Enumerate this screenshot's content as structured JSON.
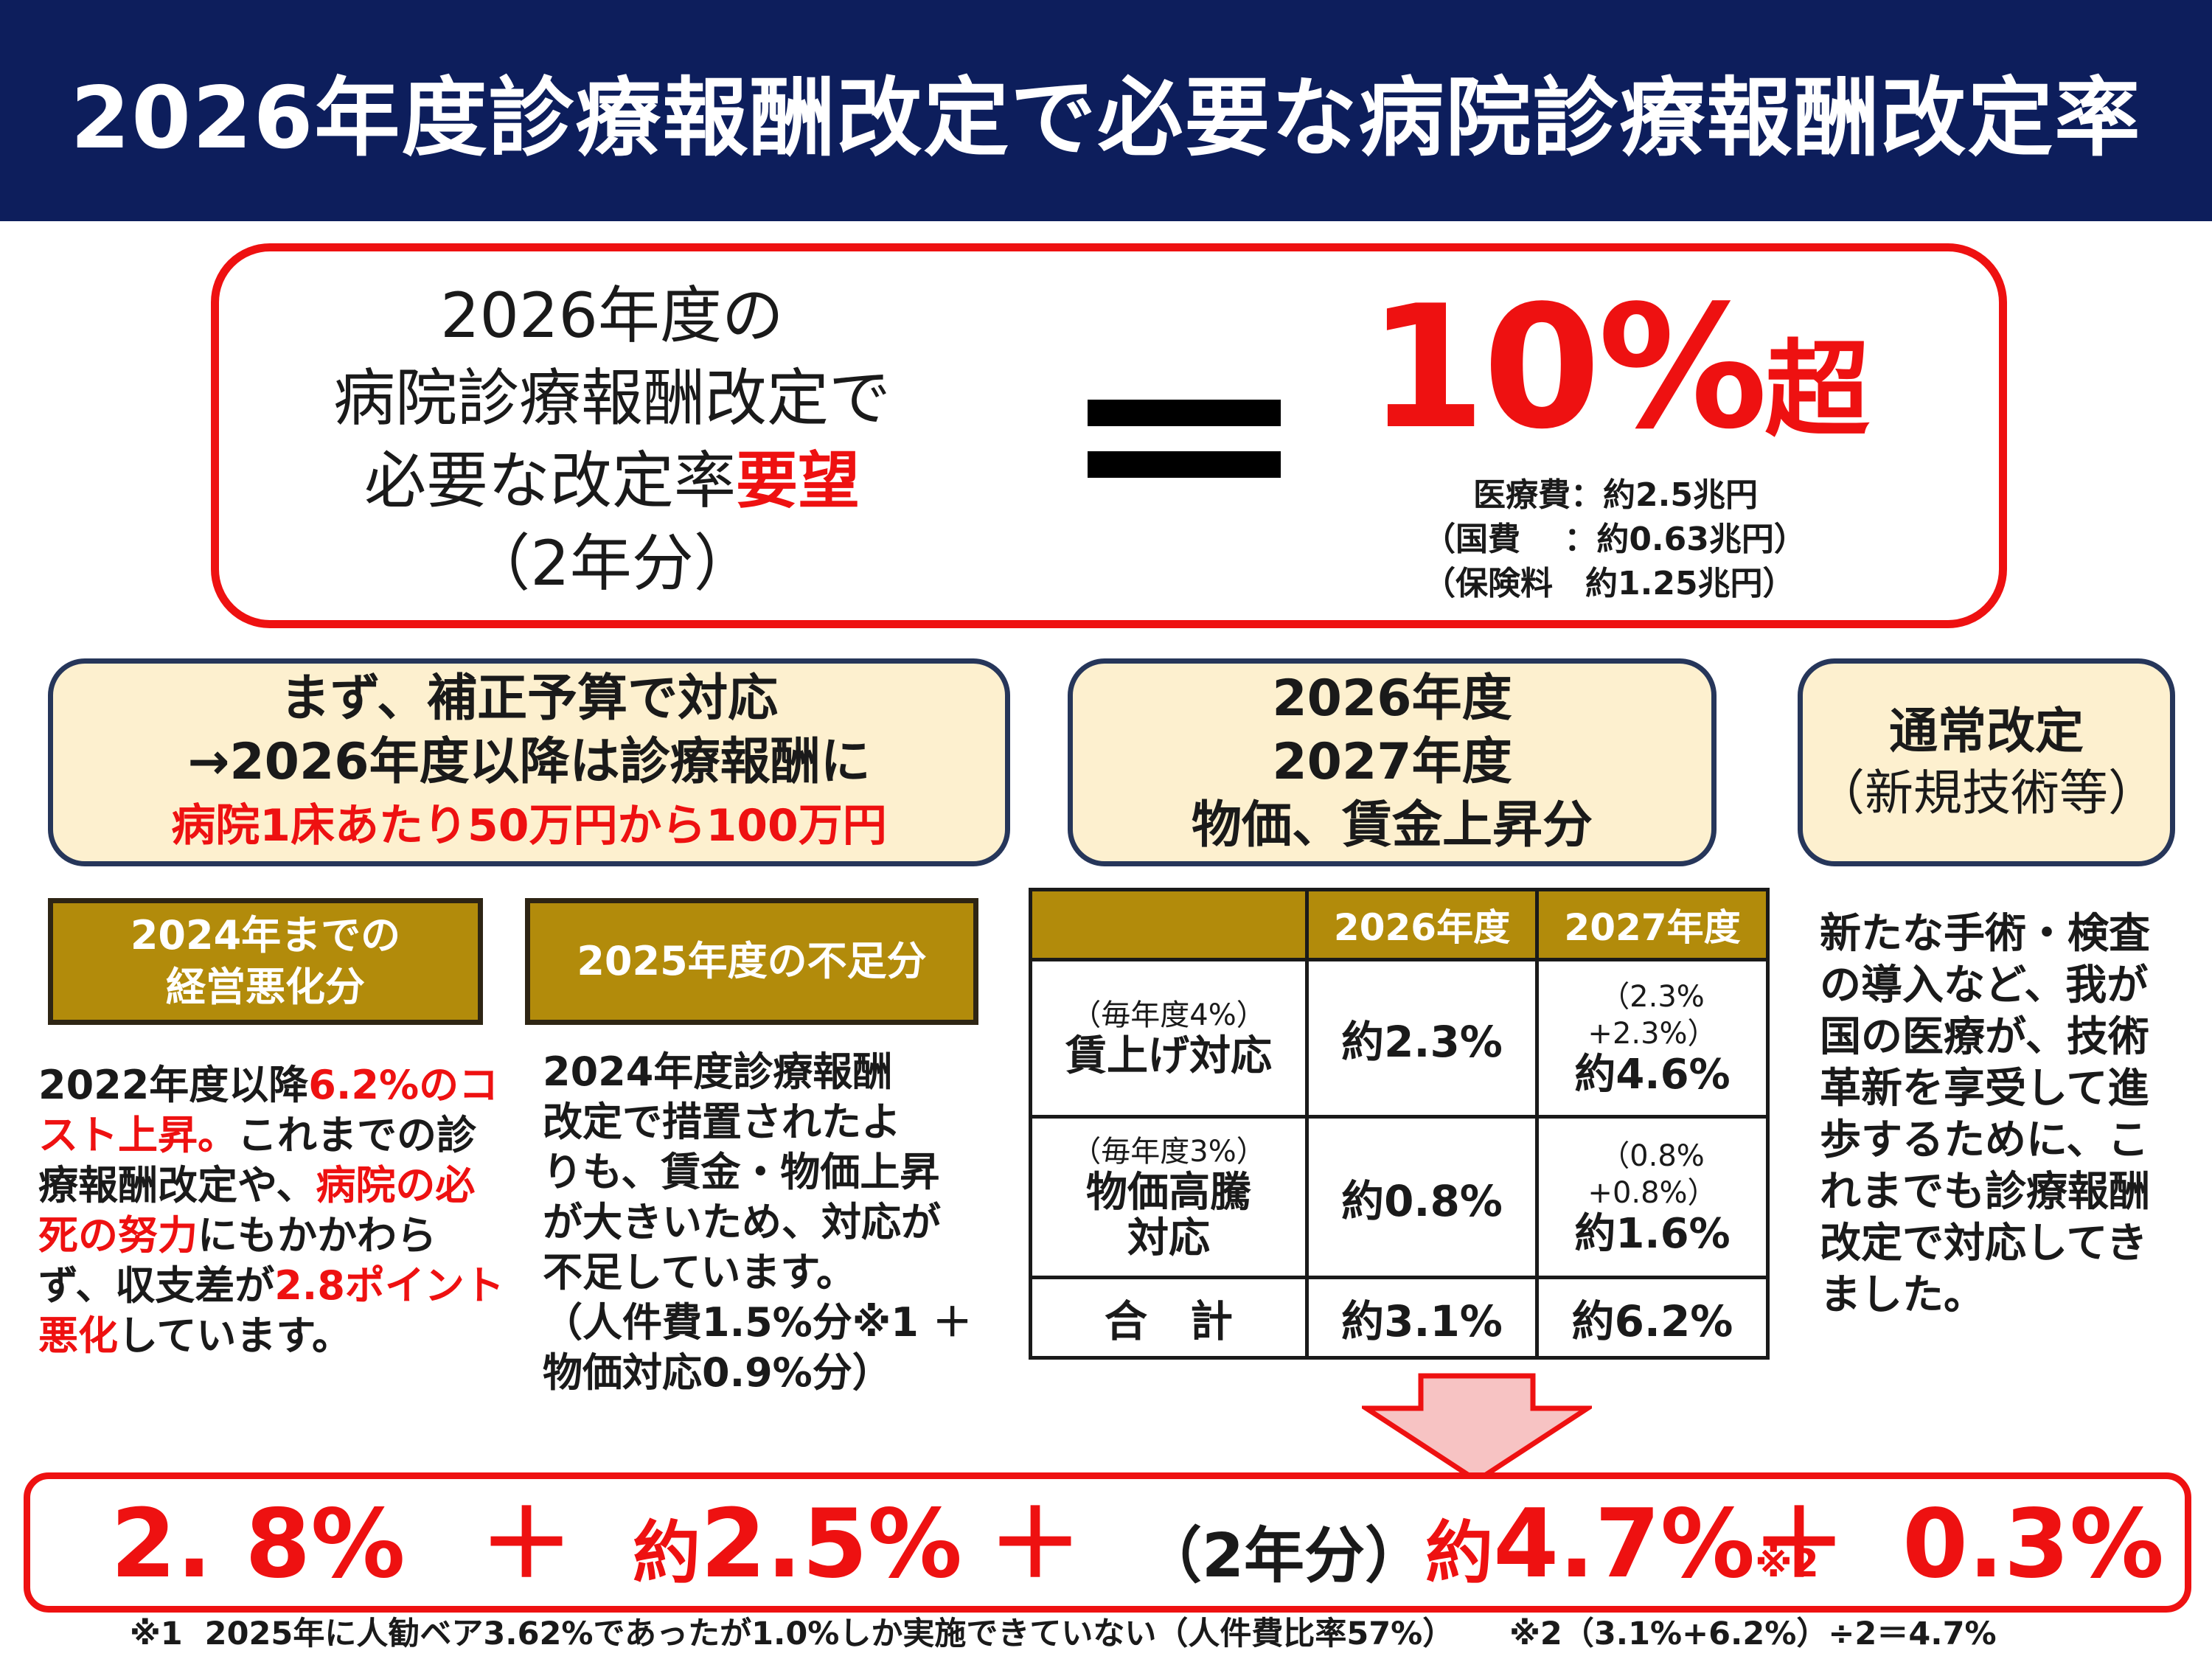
{
  "header": {
    "title": "2026年度診療報酬改定で必要な病院診療報酬改定率"
  },
  "summary": {
    "left_line1": "2026年度の",
    "left_line2": "病院診療報酬改定で",
    "left_line3_a": "必要な改定率",
    "left_line3_b": "要望",
    "left_line4": "（2年分）",
    "value": "10%",
    "value_suffix": "超",
    "cost_lines": [
      "医療費：約2.5兆円",
      "（国費　 ：約0.63兆円）",
      "（保険料　約1.25兆円）"
    ]
  },
  "box_supplementary": {
    "line1": "まず、補正予算で対応",
    "line2": "→2026年度以降は診療報酬に",
    "line3": "病院1床あたり50万円から100万円"
  },
  "box_price_wage": {
    "line1": "2026年度",
    "line2": "2027年度",
    "line3": "物価、賃金上昇分"
  },
  "box_regular": {
    "line1": "通常改定",
    "line2": "（新規技術等）"
  },
  "gold_label_1": {
    "line1": "2024年までの",
    "line2": "経営悪化分"
  },
  "gold_label_2": {
    "text": "2025年度の不足分"
  },
  "para_deterioration": {
    "p1": "2022年度以降",
    "r1": "6.2%のコスト上昇。",
    "p2": "これまでの診療報酬改定や、",
    "r2": "病院の必死の努力",
    "p3": "にもかかわらず、収支差が",
    "r3": "2.8ポイント悪化",
    "p4": "しています。"
  },
  "para_shortfall": {
    "lines": [
      "2024年度診療報酬",
      "改定で措置されたよ",
      "りも、賃金・物価上昇",
      "が大きいため、対応が",
      "不足しています。",
      "（人件費1.5%分※1 ＋",
      "物価対応0.9%分）"
    ]
  },
  "para_regular": {
    "lines": [
      "新たな手術・検査",
      "の導入など、我が",
      "国の医療が、技術",
      "革新を享受して進",
      "歩するために、こ",
      "れまでも診療報酬",
      "改定で対応してき",
      "ました。"
    ]
  },
  "table": {
    "headers": [
      "",
      "2026年度",
      "2027年度"
    ],
    "row1": {
      "note": "（毎年度4%）",
      "label": "賃上げ対応",
      "v2026": "約2.3%",
      "calc2027a": "（2.3%",
      "calc2027b": "+2.3%）",
      "v2027": "約4.6%"
    },
    "row2": {
      "note": "（毎年度3%）",
      "label1": "物価高騰",
      "label2": "対応",
      "v2026": "約0.8%",
      "calc2027a": "（0.8%",
      "calc2027b": "+0.8%）",
      "v2027": "約1.6%"
    },
    "row3": {
      "label": "合　計",
      "v2026": "約3.1%",
      "v2027": "約6.2%"
    }
  },
  "bottom": {
    "v1": "2. 8%",
    "plus1": "＋",
    "v2_prefix": "約",
    "v2": "2.5%",
    "plus2": "＋",
    "v3_note": "（2年分）",
    "v3_prefix": "約",
    "v3": "4.7%",
    "v3_mark": "※2",
    "plus3": "＋",
    "v4": "0.3%"
  },
  "footnote": "※1  2025年に人勧ベア3.62%であったが1.0%しか実施できていない（人件費比率57%）     ※2（3.1%+6.2%）÷2＝4.7%",
  "colors": {
    "header_bg": "#0d1e5c",
    "accent_red": "#ee1111",
    "cream": "#fdf0cf",
    "gold": "#b28b0b",
    "arrow_fill": "#f7c3c3"
  }
}
